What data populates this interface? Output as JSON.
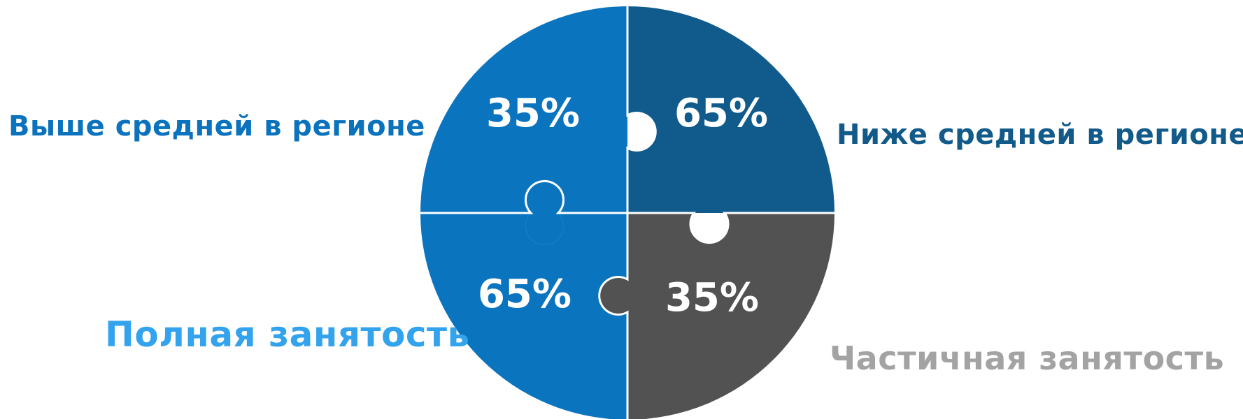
{
  "quadrants": [
    {
      "position": "top-left",
      "percent": "35%",
      "color": "#0a74bf"
    },
    {
      "position": "top-right",
      "percent": "65%",
      "color": "#105b8c"
    },
    {
      "position": "bottom-left",
      "percent": "65%",
      "color": "#0a74bf"
    },
    {
      "position": "bottom-right",
      "percent": "35%",
      "color": "#525252"
    }
  ],
  "labels": {
    "top_left": "Выше средней в регионе",
    "top_right": "Ниже средней в регионе",
    "bottom_left": "Полная занятость",
    "bottom_right": "Частичная занятость"
  },
  "colors": {
    "label_top_left": "#0b72bd",
    "label_top_right": "#125a89",
    "label_bottom_left": "#33a3ee",
    "label_bottom_right": "#a3a3a3",
    "separator": "#ffffff"
  }
}
